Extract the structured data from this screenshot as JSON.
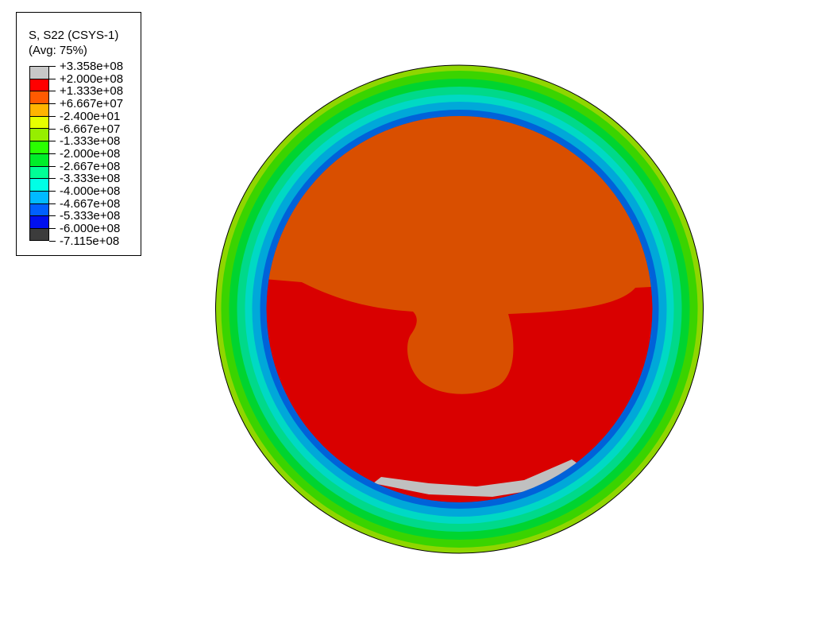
{
  "chart_data": {
    "type": "heatmap",
    "title": "S, S22 (CSYS-1)",
    "subtitle": "(Avg: 75%)",
    "legend_placement": "top-left",
    "legend_levels": [
      "+3.358e+08",
      "+2.000e+08",
      "+1.333e+08",
      "+6.667e+07",
      "-2.400e+01",
      "-6.667e+07",
      "-1.333e+08",
      "-2.000e+08",
      "-2.667e+08",
      "-3.333e+08",
      "-4.000e+08",
      "-4.667e+08",
      "-5.333e+08",
      "-6.000e+08",
      "-7.115e+08"
    ],
    "legend_colors": [
      "#c8c8c8",
      "#ff0000",
      "#ff5a00",
      "#ffb400",
      "#e6ff00",
      "#96ee00",
      "#2aff00",
      "#00ee2a",
      "#00ff96",
      "#00ffe6",
      "#00baff",
      "#0060ff",
      "#0010ee",
      "#3c3c3c"
    ],
    "value_range": [
      -711500000.0,
      335800000.0
    ]
  }
}
